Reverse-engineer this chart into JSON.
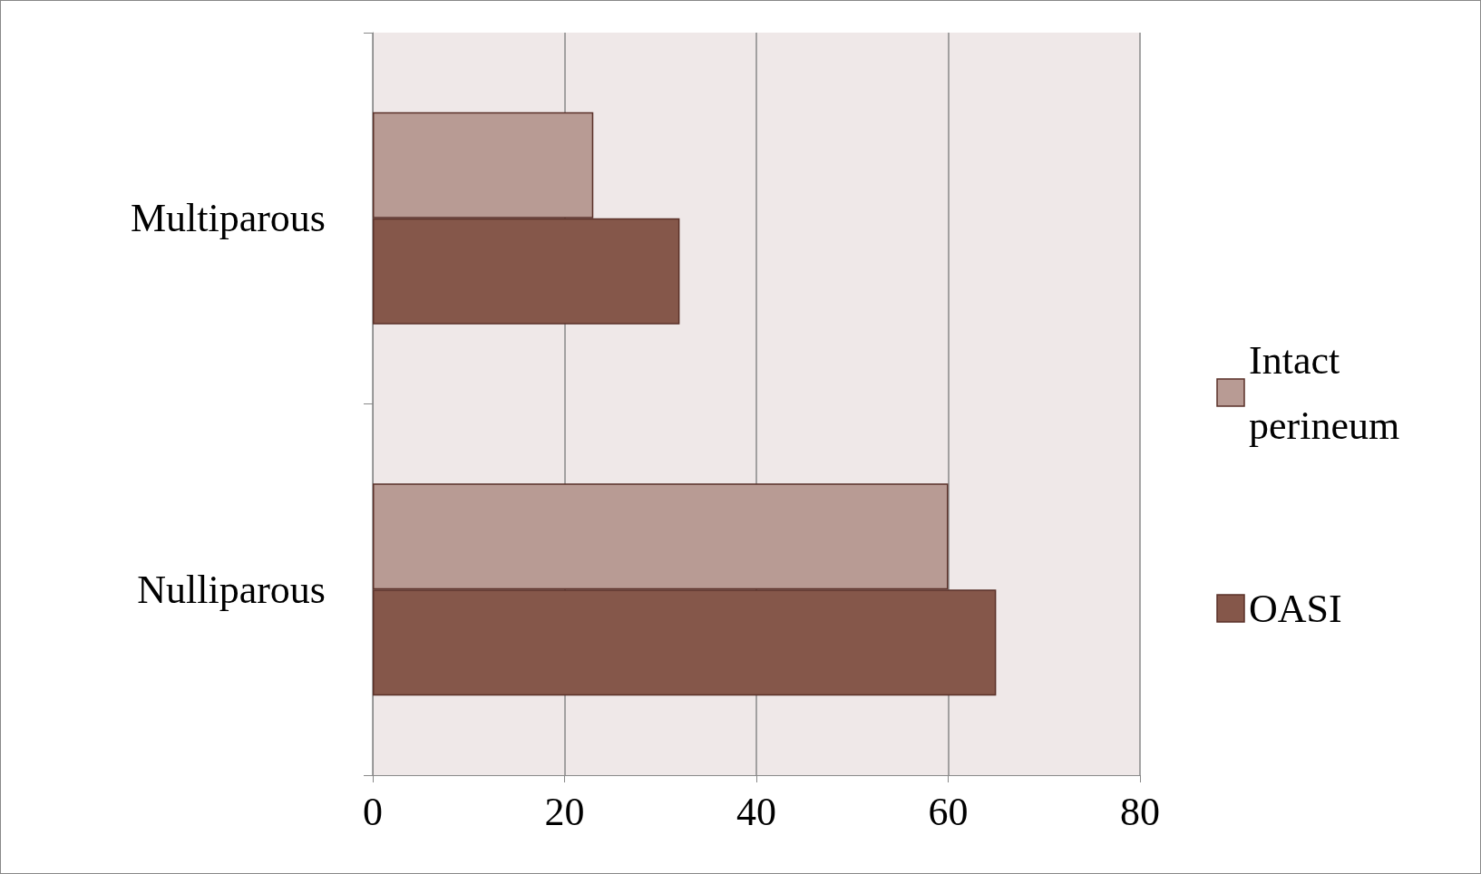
{
  "chart_data": {
    "type": "bar",
    "orientation": "horizontal",
    "categories": [
      "Multiparous",
      "Nulliparous"
    ],
    "series": [
      {
        "name": "Intact perineum",
        "color": "#b89b94",
        "values": [
          23,
          60
        ]
      },
      {
        "name": "OASI",
        "color": "#85574a",
        "values": [
          32,
          65
        ]
      }
    ],
    "xlim": [
      0,
      80
    ],
    "xticks": [
      0,
      20,
      40,
      60,
      80
    ],
    "grid": "x",
    "legend": "right"
  }
}
